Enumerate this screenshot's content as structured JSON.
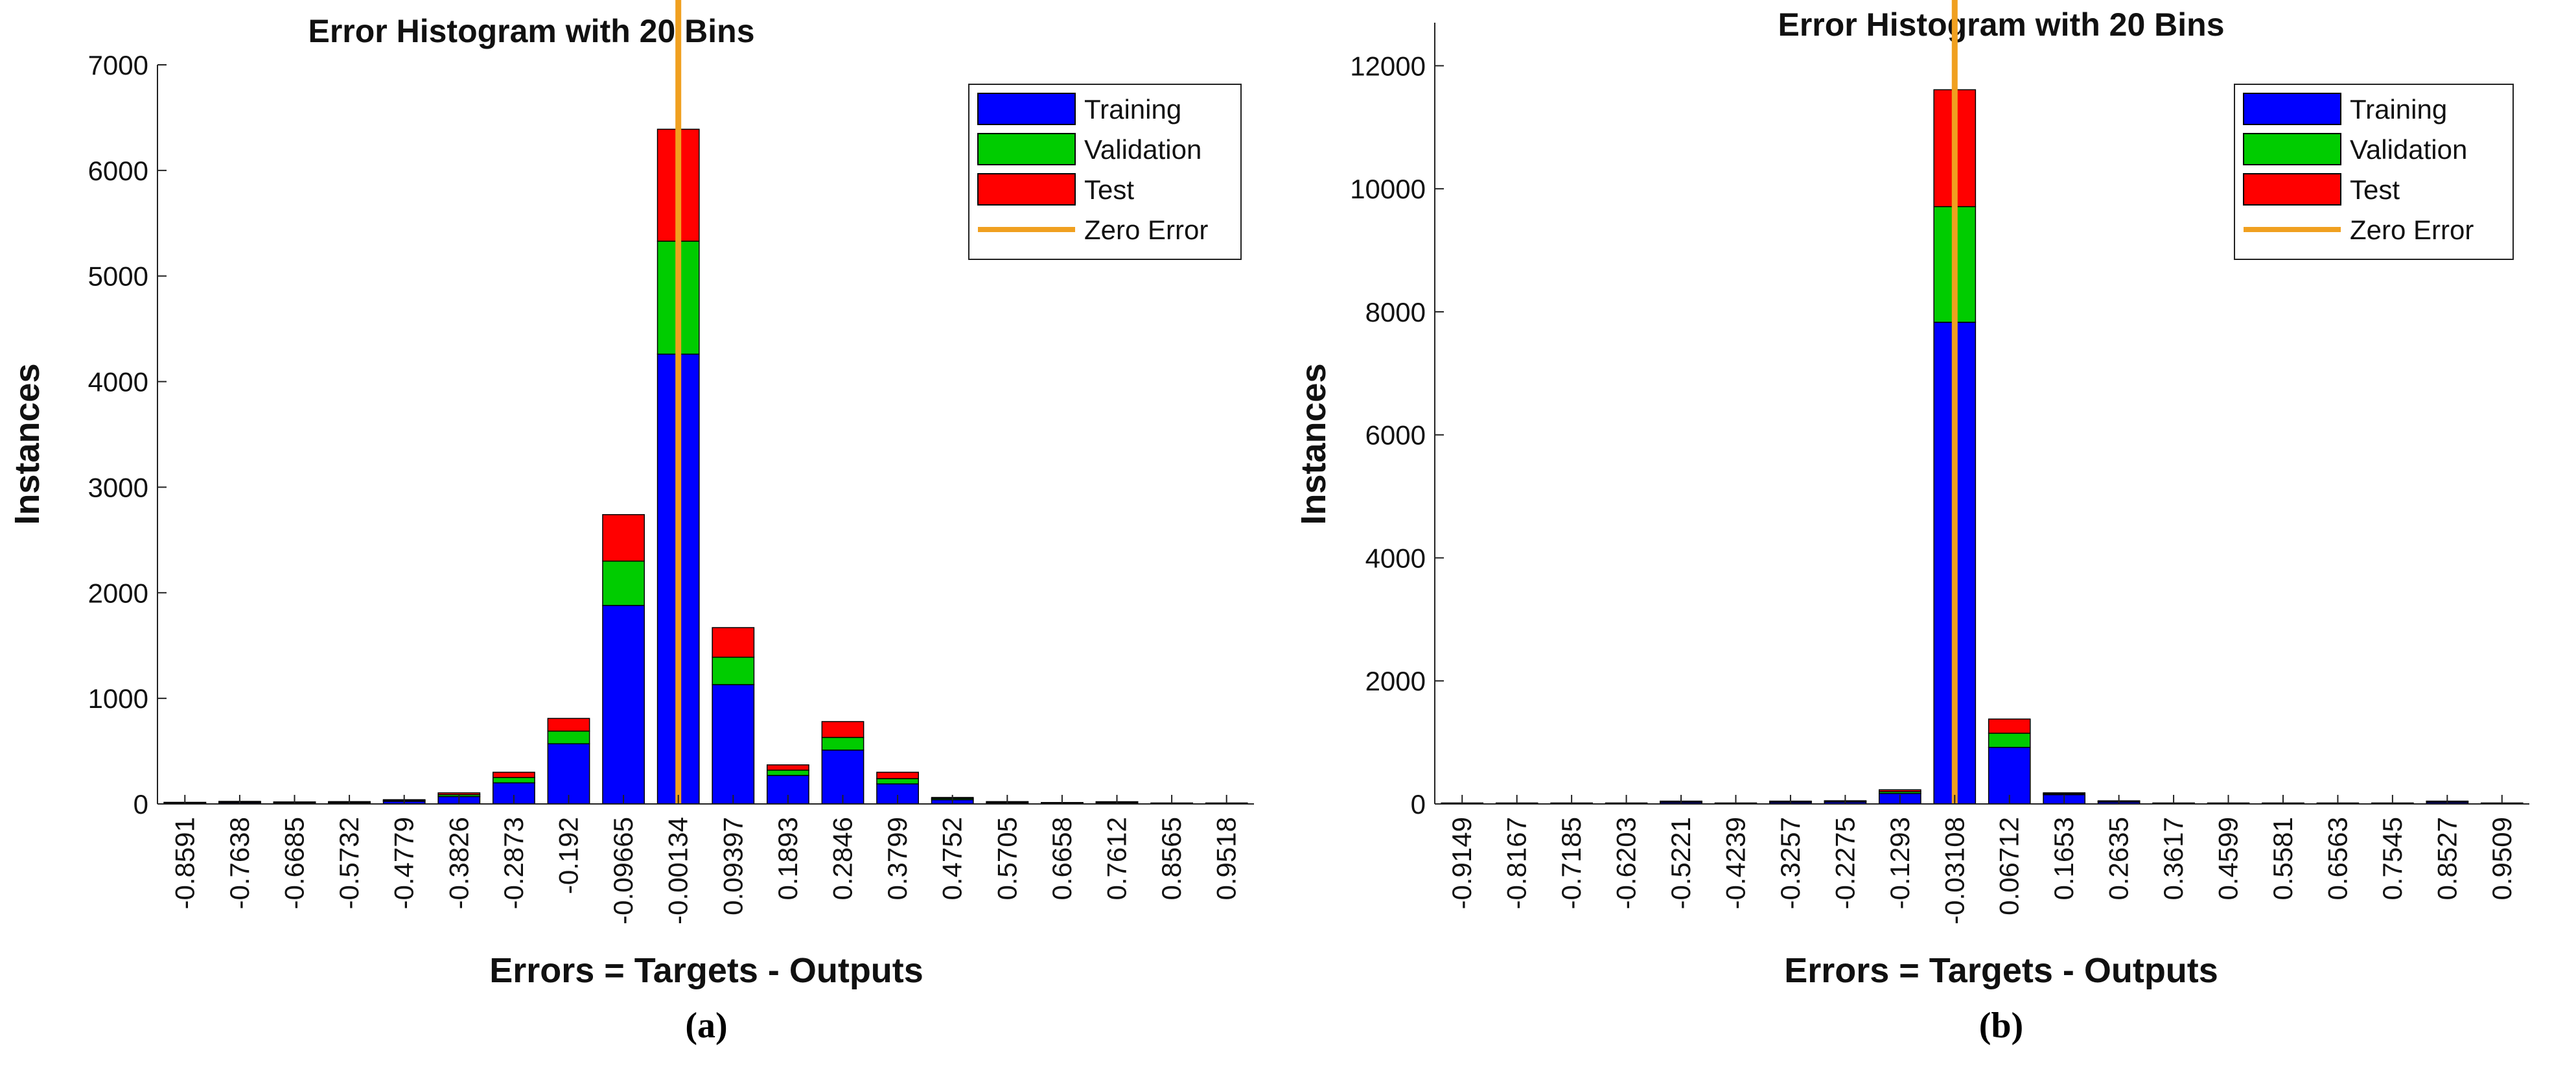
{
  "chart_data": [
    {
      "type": "bar",
      "stacked": true,
      "panel_label": "(a)",
      "title": "Error Histogram with 20 Bins",
      "xlabel": "Errors = Targets - Outputs",
      "ylabel": "Instances",
      "ylim": [
        0,
        7000
      ],
      "yticks": [
        0,
        1000,
        2000,
        3000,
        4000,
        5000,
        6000,
        7000
      ],
      "categories": [
        "-0.8591",
        "-0.7638",
        "-0.6685",
        "-0.5732",
        "-0.4779",
        "-0.3826",
        "-0.2873",
        "-0.192",
        "-0.09665",
        "-0.00134",
        "0.09397",
        "0.1893",
        "0.2846",
        "0.3799",
        "0.4752",
        "0.5705",
        "0.6658",
        "0.7612",
        "0.8565",
        "0.9518"
      ],
      "zero_error_category": "-0.00134",
      "series": [
        {
          "name": "Training",
          "color": "#0000ff",
          "values": [
            5,
            12,
            8,
            10,
            25,
            70,
            200,
            570,
            1880,
            4260,
            1130,
            270,
            510,
            190,
            40,
            10,
            3,
            10,
            2,
            1
          ]
        },
        {
          "name": "Validation",
          "color": "#00cc00",
          "values": [
            1,
            3,
            2,
            3,
            6,
            18,
            50,
            120,
            420,
            1070,
            260,
            50,
            120,
            50,
            12,
            3,
            1,
            2,
            0,
            0
          ]
        },
        {
          "name": "Test",
          "color": "#ff0000",
          "values": [
            1,
            3,
            2,
            3,
            6,
            17,
            50,
            120,
            440,
            1060,
            280,
            50,
            150,
            60,
            8,
            2,
            1,
            3,
            0,
            0
          ]
        }
      ],
      "legend": {
        "position": "top-right",
        "entries": [
          "Training",
          "Validation",
          "Test",
          "Zero Error"
        ]
      },
      "zero_error": {
        "name": "Zero Error",
        "color": "#f0a020"
      },
      "grid": false
    },
    {
      "type": "bar",
      "stacked": true,
      "panel_label": "(b)",
      "title": "Error Histogram with 20 Bins",
      "xlabel": "Errors = Targets - Outputs",
      "ylabel": "Instances",
      "ylim": [
        0,
        12700
      ],
      "yticks": [
        0,
        2000,
        4000,
        6000,
        8000,
        10000,
        12000
      ],
      "categories": [
        "-0.9149",
        "-0.8167",
        "-0.7185",
        "-0.6203",
        "-0.5221",
        "-0.4239",
        "-0.3257",
        "-0.2275",
        "-0.1293",
        "-0.03108",
        "0.06712",
        "0.1653",
        "0.2635",
        "0.3617",
        "0.4599",
        "0.5581",
        "0.6563",
        "0.7545",
        "0.8527",
        "0.9509"
      ],
      "zero_error_category": "-0.03108",
      "series": [
        {
          "name": "Training",
          "color": "#0000ff",
          "values": [
            3,
            3,
            2,
            2,
            25,
            2,
            25,
            30,
            170,
            7830,
            920,
            150,
            30,
            3,
            2,
            2,
            2,
            2,
            25,
            3
          ]
        },
        {
          "name": "Validation",
          "color": "#00cc00",
          "values": [
            0,
            0,
            0,
            0,
            5,
            0,
            5,
            6,
            30,
            1880,
            230,
            15,
            5,
            0,
            0,
            0,
            0,
            0,
            5,
            0
          ]
        },
        {
          "name": "Test",
          "color": "#ff0000",
          "values": [
            0,
            0,
            0,
            0,
            5,
            0,
            5,
            6,
            30,
            1900,
            230,
            15,
            5,
            0,
            0,
            0,
            0,
            0,
            5,
            0
          ]
        }
      ],
      "legend": {
        "position": "top-right",
        "entries": [
          "Training",
          "Validation",
          "Test",
          "Zero Error"
        ]
      },
      "zero_error": {
        "name": "Zero Error",
        "color": "#f0a020"
      },
      "grid": false
    }
  ]
}
